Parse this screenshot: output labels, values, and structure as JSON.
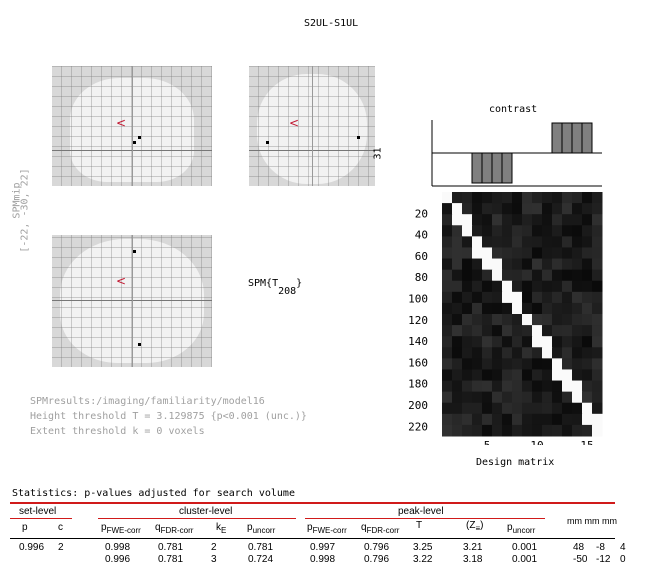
{
  "title": "S2UL-S1UL",
  "mip": {
    "side_label": "SPMmip",
    "coords": "[-22, -30, 22]",
    "cursor_glyph": "<"
  },
  "spm_stat": {
    "base": "SPM{T",
    "df": "208",
    "close": "}"
  },
  "contrast": {
    "title": "contrast",
    "ylabel": "31"
  },
  "design_matrix": {
    "xlabel": "Design matrix",
    "y_ticks": [
      "20",
      "40",
      "60",
      "80",
      "100",
      "120",
      "140",
      "160",
      "180",
      "200",
      "220"
    ],
    "x_ticks": [
      "5",
      "10",
      "15"
    ]
  },
  "info": {
    "path": "SPMresults:/imaging/familiarity/model16",
    "height": "Height threshold T = 3.129875  {p<0.001 (unc.)}",
    "extent": "Extent threshold k = 0 voxels"
  },
  "stats": {
    "heading": "Statistics:  p-values adjusted for search volume",
    "set_level": "set-level",
    "cluster_level": "cluster-level",
    "peak_level": "peak-level",
    "mm": "mm mm mm",
    "cols": {
      "p": "p",
      "c": "c",
      "pfwe_c": "FWE-corr",
      "qfdr_c": "FDR-corr",
      "ke": "E",
      "punc_c": "uncorr",
      "pfwe_p": "FWE-corr",
      "qfdr_p": "FDR-corr",
      "t": "T",
      "z": "(Z",
      "z_sub": "≡",
      "z_close": ")",
      "punc_p": "uncorr"
    },
    "rows": [
      {
        "p": "0.996",
        "c": "2",
        "pfwe_c": "0.998",
        "qfdr_c": "0.781",
        "ke": "2",
        "punc_c": "0.781",
        "pfwe_p": "0.997",
        "qfdr_p": "0.796",
        "t": "3.25",
        "z": "3.21",
        "punc_p": "0.001",
        "x": "48",
        "y": "-8",
        "z_mm": "4"
      },
      {
        "p": "",
        "c": "",
        "pfwe_c": "0.996",
        "qfdr_c": "0.781",
        "ke": "3",
        "punc_c": "0.724",
        "pfwe_p": "0.998",
        "qfdr_p": "0.796",
        "t": "3.22",
        "z": "3.18",
        "punc_p": "0.001",
        "x": "-50",
        "y": "-12",
        "z_mm": "0"
      }
    ]
  },
  "colors": {
    "accent_red": "#d01a1a",
    "mip_bg": "#d8d8d8",
    "contrast_bar": "#808080"
  }
}
